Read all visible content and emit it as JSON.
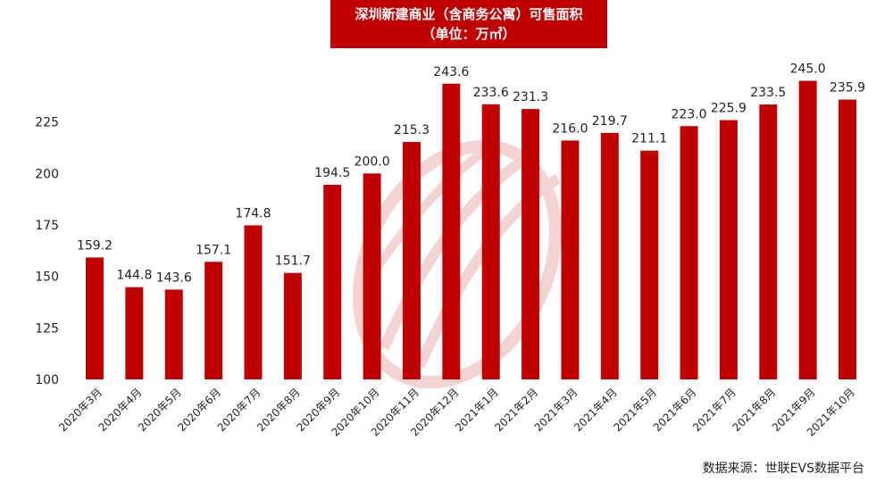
{
  "chart_data": {
    "type": "bar",
    "title": "深圳新建商业（含商务公寓）可售面积",
    "subtitle": "（单位：万㎡）",
    "categories": [
      "2020年3月",
      "2020年4月",
      "2020年5月",
      "2020年6月",
      "2020年7月",
      "2020年8月",
      "2020年9月",
      "2020年10月",
      "2020年11月",
      "2020年12月",
      "2021年1月",
      "2021年2月",
      "2021年3月",
      "2021年4月",
      "2021年5月",
      "2021年6月",
      "2021年7月",
      "2021年8月",
      "2021年9月",
      "2021年10月"
    ],
    "values": [
      159.2,
      144.8,
      143.6,
      157.1,
      174.8,
      151.7,
      194.5,
      200.0,
      215.3,
      243.6,
      233.6,
      231.3,
      216.0,
      219.7,
      211.1,
      223.0,
      225.9,
      233.5,
      245.0,
      235.9
    ],
    "value_labels": [
      "159.2",
      "144.8",
      "143.6",
      "157.1",
      "174.8",
      "151.7",
      "194.5",
      "200.0",
      "215.3",
      "243.6",
      "233.6",
      "231.3",
      "216.0",
      "219.7",
      "211.1",
      "223.0",
      "225.9",
      "233.5",
      "245.0",
      "235.9"
    ],
    "yticks": [
      100,
      125,
      150,
      175,
      200,
      225
    ],
    "ylim": [
      100,
      250
    ],
    "xlabel": "",
    "ylabel": "",
    "grid": false,
    "bar_color": "#c00000"
  },
  "source": "数据来源：世联EVS数据平台",
  "colors": {
    "title_bg": "#c00000",
    "watermark": "#e8b8b8"
  }
}
